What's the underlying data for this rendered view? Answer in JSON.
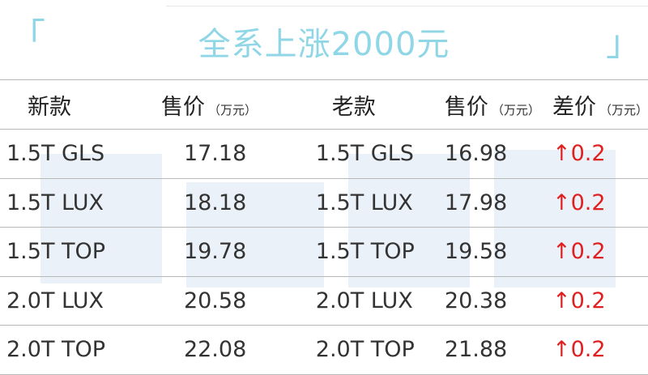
{
  "title": "全系上涨2000元",
  "brackets": {
    "left": "「",
    "right": "」"
  },
  "headers": {
    "new_model": "新款",
    "new_price": "售价",
    "new_price_unit": "（万元）",
    "old_model": "老款",
    "old_price": "售价",
    "old_price_unit": "（万元）",
    "diff": "差价",
    "diff_unit": "（万元）"
  },
  "rows": [
    {
      "new_model": "1.5T GLS",
      "new_price": "17.18",
      "old_model": "1.5T GLS",
      "old_price": "16.98",
      "diff": "↑0.2"
    },
    {
      "new_model": "1.5T LUX",
      "new_price": "18.18",
      "old_model": "1.5T LUX",
      "old_price": "17.98",
      "diff": "↑0.2"
    },
    {
      "new_model": "1.5T TOP",
      "new_price": "19.78",
      "old_model": "1.5T TOP",
      "old_price": "19.58",
      "diff": "↑0.2"
    },
    {
      "new_model": "2.0T LUX",
      "new_price": "20.58",
      "old_model": "2.0T LUX",
      "old_price": "20.38",
      "diff": "↑0.2"
    },
    {
      "new_model": "2.0T TOP",
      "new_price": "22.08",
      "old_model": "2.0T TOP",
      "old_price": "21.88",
      "diff": "↑0.2"
    }
  ],
  "colors": {
    "title": "#8fd6e6",
    "increase": "#e02020",
    "rule": "#b8b8b8"
  }
}
